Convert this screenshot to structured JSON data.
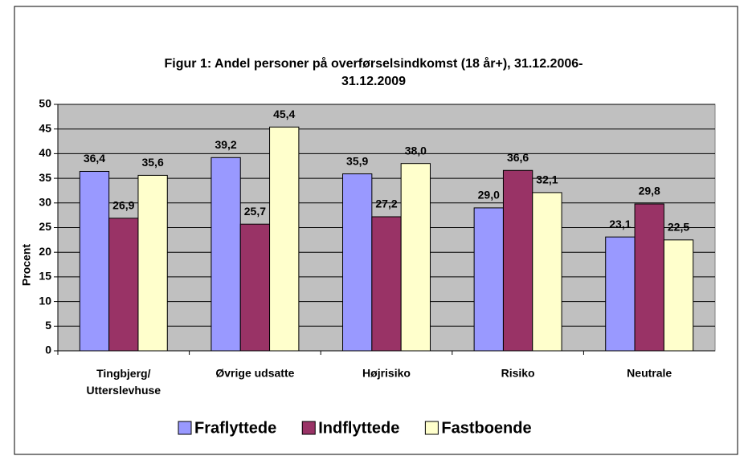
{
  "chart_data": {
    "type": "bar",
    "title": "Figur 1: Andel personer på overførselsindkomst (18 år+), 31.12.2006-31.12.2009",
    "y_label": "Procent",
    "categories": [
      "Tingbjerg/ Utterslevhuse",
      "Øvrige udsatte",
      "Højrisiko",
      "Risiko",
      "Neutrale"
    ],
    "series": [
      {
        "name": "Fraflyttede",
        "color": "#9999ff",
        "values": [
          36.4,
          39.2,
          35.9,
          29.0,
          23.1
        ],
        "value_labels": [
          "36,4",
          "39,2",
          "35,9",
          "29,0",
          "23,1"
        ]
      },
      {
        "name": "Indflyttede",
        "color": "#993366",
        "values": [
          26.9,
          25.7,
          27.2,
          36.6,
          29.8
        ],
        "value_labels": [
          "26,9",
          "25,7",
          "27,2",
          "36,6",
          "29,8"
        ]
      },
      {
        "name": "Fastboende",
        "color": "#ffffcc",
        "values": [
          35.6,
          45.4,
          38.0,
          32.1,
          22.5
        ],
        "value_labels": [
          "35,6",
          "45,4",
          "38,0",
          "32,1",
          "22,5"
        ]
      }
    ],
    "ylim": [
      0,
      50
    ],
    "yticks": [
      0,
      5,
      10,
      15,
      20,
      25,
      30,
      35,
      40,
      45,
      50
    ],
    "grid": true,
    "plot_background": "#c0c0c0",
    "legend": "bottom"
  }
}
